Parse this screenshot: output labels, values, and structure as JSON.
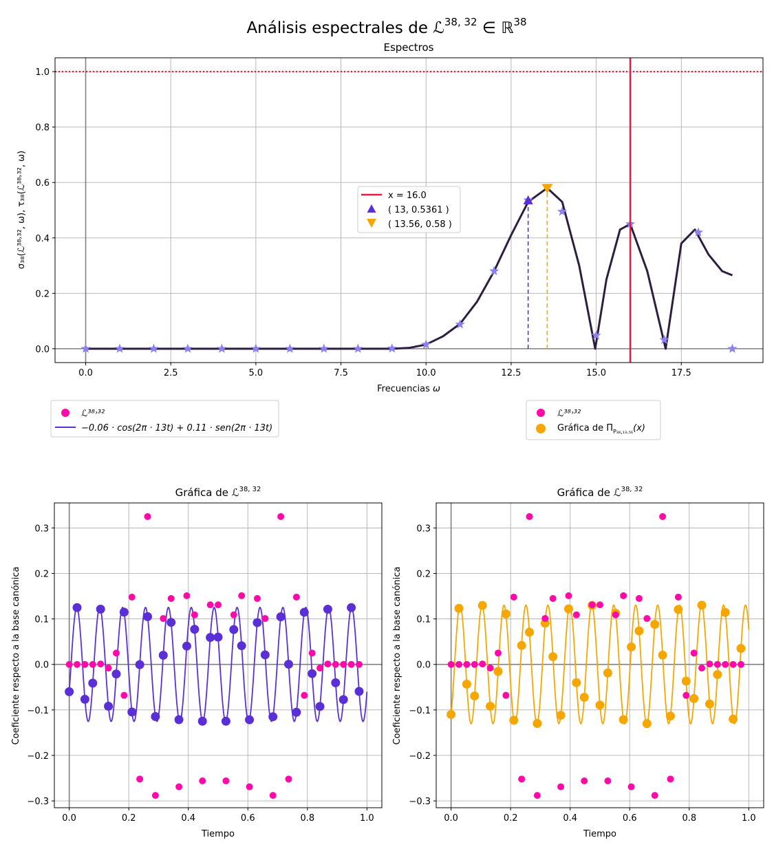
{
  "figure": {
    "suptitle_text": "Análisis espectrales de ",
    "suptitle_symbol": "ℒ",
    "suptitle_sup": "38, 32",
    "suptitle_in": " ∈ ℝ",
    "suptitle_sup2": "38"
  },
  "chart_data": [
    {
      "id": "spectrum",
      "type": "line",
      "title": "Espectros",
      "xlabel_text": "Frecuencias ",
      "xlabel_symbol": "ω",
      "ylabel": "σ₃₈(ℒ³⁸˒³², ω), τ₃₈(ℒ³⁸˒³², ω)",
      "xlim": [
        -0.9,
        19.9
      ],
      "ylim": [
        -0.05,
        1.05
      ],
      "xticks": [
        0.0,
        2.5,
        5.0,
        7.5,
        10.0,
        12.5,
        15.0,
        17.5
      ],
      "xtick_labels": [
        "0.0",
        "2.5",
        "5.0",
        "7.5",
        "10.0",
        "12.5",
        "15.0",
        "17.5"
      ],
      "yticks": [
        0.0,
        0.2,
        0.4,
        0.6,
        0.8,
        1.0
      ],
      "ytick_labels": [
        "0.0",
        "0.2",
        "0.4",
        "0.6",
        "0.8",
        "1.0"
      ],
      "grid": true,
      "curve": {
        "color": "#2d1e40",
        "x": [
          0,
          9,
          9.5,
          10,
          10.5,
          11,
          11.5,
          12,
          12.5,
          13,
          13.56,
          14,
          14.5,
          14.97,
          15.3,
          15.7,
          16.0,
          16.5,
          17.04,
          17.5,
          17.9,
          18.3,
          18.7,
          19.0
        ],
        "y": [
          0,
          0,
          0.003,
          0.015,
          0.045,
          0.09,
          0.17,
          0.28,
          0.41,
          0.53,
          0.58,
          0.53,
          0.3,
          0.0,
          0.25,
          0.43,
          0.45,
          0.28,
          0.0,
          0.38,
          0.43,
          0.34,
          0.28,
          0.265
        ]
      },
      "stars": {
        "color": "#8b82f0",
        "x": [
          0,
          1,
          2,
          3,
          4,
          5,
          6,
          7,
          8,
          9,
          10,
          11,
          12,
          13,
          14,
          15,
          16,
          17,
          18,
          19
        ],
        "y": [
          0,
          0,
          0,
          0,
          0,
          0,
          0,
          0,
          0,
          0.001,
          0.015,
          0.088,
          0.28,
          0.5361,
          0.495,
          0.048,
          0.45,
          0.032,
          0.42,
          0.0
        ]
      },
      "hline": {
        "y": 1.0,
        "color": "#e8193c",
        "style": "dotted"
      },
      "vline": {
        "x": 16.0,
        "color": "#e8193c",
        "label": "x = 16.0"
      },
      "marker_up": {
        "x": 13,
        "y": 0.5361,
        "color": "#5b2fd6",
        "label": "( 13, 0.5361 )"
      },
      "marker_down": {
        "x": 13.56,
        "y": 0.58,
        "color": "#f5a700",
        "label": "( 13.56, 0.58 )"
      }
    },
    {
      "id": "signal_left",
      "type": "scatter",
      "title_text": "Gráfica de ",
      "title_symbol": "ℒ",
      "title_sup": "38, 32",
      "xlabel": "Tiempo",
      "ylabel": "Coeficiente respecto a la base canónica",
      "xlim": [
        -0.05,
        1.05
      ],
      "ylim": [
        -0.315,
        0.355
      ],
      "xticks": [
        0.0,
        0.2,
        0.4,
        0.6,
        0.8,
        1.0
      ],
      "xtick_labels": [
        "0.0",
        "0.2",
        "0.4",
        "0.6",
        "0.8",
        "1.0"
      ],
      "yticks": [
        -0.3,
        -0.2,
        -0.1,
        0.0,
        0.1,
        0.2,
        0.3
      ],
      "ytick_labels": [
        "−0.3",
        "−0.2",
        "−0.1",
        "0.0",
        "0.1",
        "0.2",
        "0.3"
      ],
      "points_color": "#ff0aa8",
      "points": [
        0,
        0,
        0,
        0,
        0.001,
        -0.008,
        0.025,
        -0.068,
        0.148,
        -0.252,
        0.325,
        -0.288,
        0.101,
        0.145,
        -0.269,
        0.151,
        0.109,
        -0.256,
        0.131,
        0.131,
        -0.256,
        0.109,
        0.151,
        -0.269,
        0.145,
        0.101,
        -0.288,
        0.325,
        -0.252,
        0.148,
        -0.068,
        0.025,
        -0.008,
        0.001,
        0,
        0,
        0,
        0
      ],
      "fit": {
        "a": -0.06,
        "b": 0.11,
        "freq": 13,
        "color": "#5b2fd6"
      },
      "legend": {
        "points_label": "ℒ³⁸˒³²",
        "fit_label": "−0.06 · cos(2π · 13t) + 0.11 · sen(2π · 13t)"
      }
    },
    {
      "id": "signal_right",
      "type": "scatter",
      "title_text": "Gráfica de ",
      "title_symbol": "ℒ",
      "title_sup": "38, 32",
      "xlabel": "Tiempo",
      "ylabel": "Coeficiente respecto a la base canónica",
      "xlim": [
        -0.05,
        1.05
      ],
      "ylim": [
        -0.315,
        0.355
      ],
      "xticks": [
        0.0,
        0.2,
        0.4,
        0.6,
        0.8,
        1.0
      ],
      "xtick_labels": [
        "0.0",
        "0.2",
        "0.4",
        "0.6",
        "0.8",
        "1.0"
      ],
      "yticks": [
        -0.3,
        -0.2,
        -0.1,
        0.0,
        0.1,
        0.2,
        0.3
      ],
      "ytick_labels": [
        "−0.3",
        "−0.2",
        "−0.1",
        "0.0",
        "0.1",
        "0.2",
        "0.3"
      ],
      "points_color": "#ff0aa8",
      "fit": {
        "a": -0.11,
        "b": 0.07,
        "freq": 13.56,
        "color": "#f5a700"
      },
      "legend": {
        "points_label": "ℒ³⁸˒³²",
        "fit_label_text": "Gráfica de Π",
        "fit_label_sub": "P₃₈,₁₃.₅₆",
        "fit_label_tail": "(x)"
      }
    }
  ]
}
